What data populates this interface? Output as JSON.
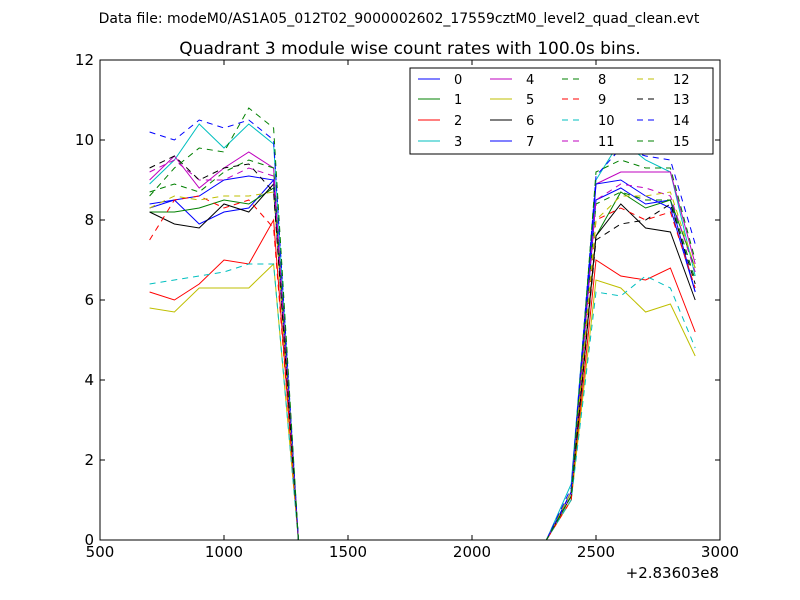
{
  "header": {
    "datafile": "Data file: modeM0/AS1A05_012T02_9000002602_17559cztM0_level2_quad_clean.evt"
  },
  "chart_data": {
    "type": "line",
    "title": "Quadrant 3 module wise count rates with 100.0s bins.",
    "xlabel": "",
    "ylabel": "",
    "x_offset_label": "+2.83603e8",
    "xlim": [
      500,
      3000
    ],
    "ylim": [
      0,
      12
    ],
    "xticks": [
      500,
      1000,
      1500,
      2000,
      2500,
      3000
    ],
    "yticks": [
      0,
      2,
      4,
      6,
      8,
      10,
      12
    ],
    "grid": false,
    "legend_position": "top-right",
    "x": [
      700,
      800,
      900,
      1000,
      1100,
      1200,
      1300,
      1400,
      1500,
      1600,
      1700,
      1800,
      1900,
      2000,
      2100,
      2200,
      2300,
      2400,
      2500,
      2600,
      2700,
      2800,
      2900
    ],
    "series": [
      {
        "name": "0",
        "color": "#0000ff",
        "dash": "solid",
        "values": [
          8.3,
          8.5,
          7.9,
          8.2,
          8.3,
          9.0,
          0,
          0,
          0,
          0,
          0,
          0,
          0,
          0,
          0,
          0,
          0,
          1.2,
          8.5,
          8.8,
          8.4,
          8.5,
          6.2
        ]
      },
      {
        "name": "1",
        "color": "#008000",
        "dash": "solid",
        "values": [
          8.2,
          8.2,
          8.3,
          8.5,
          8.4,
          8.8,
          0,
          0,
          0,
          0,
          0,
          0,
          0,
          0,
          0,
          0,
          0,
          1.2,
          7.6,
          8.7,
          8.3,
          8.5,
          6.8
        ]
      },
      {
        "name": "2",
        "color": "#ff0000",
        "dash": "solid",
        "values": [
          6.2,
          6.0,
          6.4,
          7.0,
          6.9,
          8.0,
          0,
          0,
          0,
          0,
          0,
          0,
          0,
          0,
          0,
          0,
          0,
          1.0,
          7.0,
          6.6,
          6.5,
          6.8,
          5.2
        ]
      },
      {
        "name": "3",
        "color": "#00bfbf",
        "dash": "solid",
        "values": [
          8.9,
          9.5,
          10.4,
          9.8,
          10.4,
          9.9,
          0,
          0,
          0,
          0,
          0,
          0,
          0,
          0,
          0,
          0,
          0,
          1.4,
          9.0,
          10.0,
          9.5,
          9.2,
          6.6
        ]
      },
      {
        "name": "4",
        "color": "#bf00bf",
        "dash": "solid",
        "values": [
          9.0,
          9.6,
          8.8,
          9.3,
          9.7,
          9.3,
          0,
          0,
          0,
          0,
          0,
          0,
          0,
          0,
          0,
          0,
          0,
          1.2,
          8.9,
          9.2,
          9.2,
          9.2,
          6.9
        ]
      },
      {
        "name": "5",
        "color": "#bfbf00",
        "dash": "solid",
        "values": [
          5.8,
          5.7,
          6.3,
          6.3,
          6.3,
          6.9,
          0,
          0,
          0,
          0,
          0,
          0,
          0,
          0,
          0,
          0,
          0,
          1.0,
          6.5,
          6.3,
          5.7,
          5.9,
          4.6
        ]
      },
      {
        "name": "6",
        "color": "#000000",
        "dash": "solid",
        "values": [
          8.2,
          7.9,
          7.8,
          8.4,
          8.2,
          8.9,
          0,
          0,
          0,
          0,
          0,
          0,
          0,
          0,
          0,
          0,
          0,
          1.1,
          7.6,
          8.4,
          7.8,
          7.7,
          6.0
        ]
      },
      {
        "name": "7",
        "color": "#0000ff",
        "dash": "solid",
        "values": [
          8.4,
          8.5,
          8.6,
          9.0,
          9.1,
          9.0,
          0,
          0,
          0,
          0,
          0,
          0,
          0,
          0,
          0,
          0,
          0,
          1.2,
          8.9,
          9.0,
          8.6,
          8.3,
          6.2
        ]
      },
      {
        "name": "8",
        "color": "#008000",
        "dash": "dashed",
        "values": [
          8.7,
          8.9,
          8.7,
          9.2,
          9.5,
          9.3,
          0,
          0,
          0,
          0,
          0,
          0,
          0,
          0,
          0,
          0,
          0,
          1.1,
          8.4,
          8.7,
          8.5,
          8.5,
          6.5
        ]
      },
      {
        "name": "9",
        "color": "#ff0000",
        "dash": "dashed",
        "values": [
          7.5,
          8.5,
          8.6,
          8.3,
          8.5,
          7.8,
          0,
          0,
          0,
          0,
          0,
          0,
          0,
          0,
          0,
          0,
          0,
          1.0,
          8.0,
          8.3,
          8.0,
          8.2,
          6.3
        ]
      },
      {
        "name": "10",
        "color": "#00bfbf",
        "dash": "dashed",
        "values": [
          6.4,
          6.5,
          6.6,
          6.7,
          6.9,
          6.9,
          0,
          0,
          0,
          0,
          0,
          0,
          0,
          0,
          0,
          0,
          0,
          1.0,
          6.2,
          6.1,
          6.6,
          6.3,
          4.8
        ]
      },
      {
        "name": "11",
        "color": "#bf00bf",
        "dash": "dashed",
        "values": [
          9.2,
          9.5,
          9.0,
          9.0,
          9.3,
          9.1,
          0,
          0,
          0,
          0,
          0,
          0,
          0,
          0,
          0,
          0,
          0,
          1.1,
          8.5,
          8.9,
          8.8,
          8.6,
          6.7
        ]
      },
      {
        "name": "12",
        "color": "#bfbf00",
        "dash": "dashed",
        "values": [
          8.3,
          8.6,
          8.5,
          8.6,
          8.6,
          8.7,
          0,
          0,
          0,
          0,
          0,
          0,
          0,
          0,
          0,
          0,
          0,
          1.2,
          8.0,
          8.6,
          8.6,
          8.7,
          6.8
        ]
      },
      {
        "name": "13",
        "color": "#000000",
        "dash": "dashed",
        "values": [
          9.3,
          9.6,
          9.0,
          9.3,
          9.4,
          8.7,
          0,
          0,
          0,
          0,
          0,
          0,
          0,
          0,
          0,
          0,
          0,
          1.1,
          7.5,
          7.9,
          8.0,
          8.4,
          6.4
        ]
      },
      {
        "name": "14",
        "color": "#0000ff",
        "dash": "dashed",
        "values": [
          10.2,
          10.0,
          10.5,
          10.3,
          10.5,
          10.0,
          0,
          0,
          0,
          0,
          0,
          0,
          0,
          0,
          0,
          0,
          0,
          1.3,
          9.1,
          9.8,
          9.6,
          9.5,
          7.4
        ]
      },
      {
        "name": "15",
        "color": "#008000",
        "dash": "dashed",
        "values": [
          8.6,
          9.3,
          9.8,
          9.7,
          10.8,
          10.3,
          0,
          0,
          0,
          0,
          0,
          0,
          0,
          0,
          0,
          0,
          0,
          1.1,
          9.2,
          9.5,
          9.3,
          9.3,
          7.0
        ]
      }
    ]
  }
}
